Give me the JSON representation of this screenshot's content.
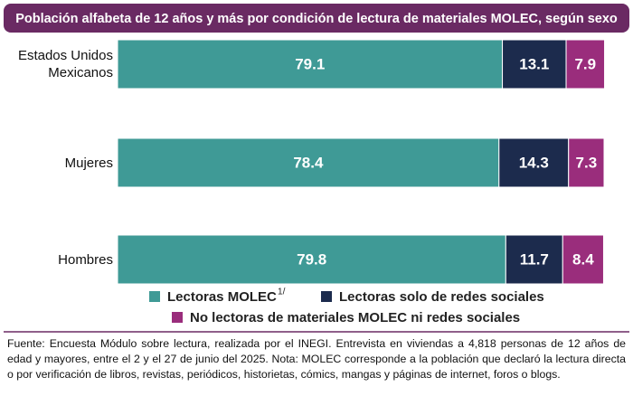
{
  "chart_data": {
    "type": "stacked-bar-horizontal",
    "title": "Población alfabeta de 12 años y más por condición de lectura de materiales MOLEC, según sexo",
    "categories": [
      "Estados Unidos Mexicanos",
      "Mujeres",
      "Hombres"
    ],
    "series": [
      {
        "name": "Lectoras MOLEC",
        "name_superscript": "1/",
        "color": "#3f9a96",
        "values": [
          79.1,
          78.4,
          79.8
        ]
      },
      {
        "name": "Lectoras solo de redes sociales",
        "color": "#1c2b4d",
        "values": [
          13.1,
          14.3,
          11.7
        ]
      },
      {
        "name": "No lectoras de materiales MOLEC ni redes sociales",
        "color": "#9a2d7c",
        "values": [
          7.9,
          7.3,
          8.4
        ]
      }
    ],
    "xlim": [
      0,
      100
    ],
    "note": "Fuente: Encuesta Módulo sobre lectura, realizada por el INEGI. Entrevista en viviendas a 4,818 personas de 12 años de edad y mayores, entre el 2 y el 27 de junio del 2025. Nota: MOLEC corresponde a la población que declaró la lectura directa o por verificación de libros, revistas, periódicos, historietas, cómics, mangas y páginas de internet, foros o blogs."
  }
}
